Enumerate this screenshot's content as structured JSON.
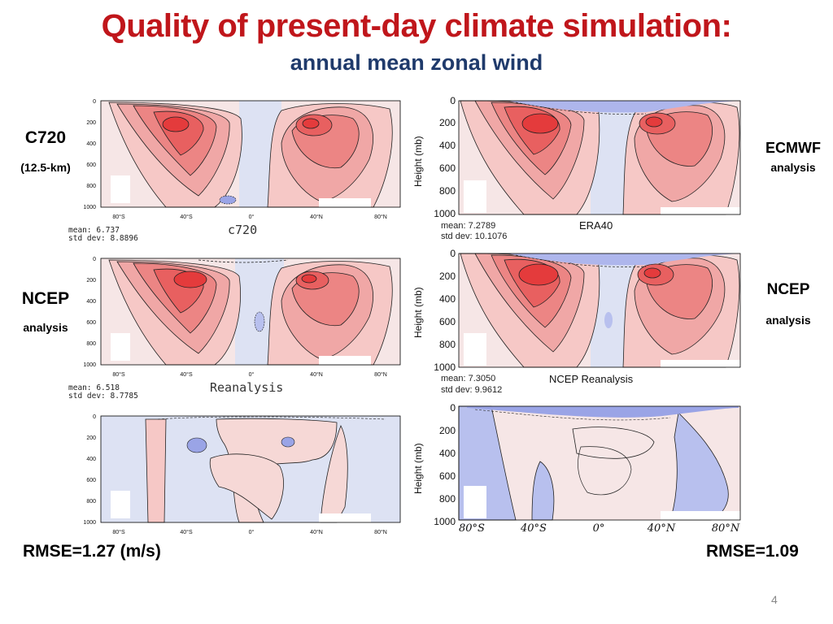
{
  "title": "Quality of present-day climate simulation:",
  "subtitle": "annual mean zonal wind",
  "left_labels": {
    "top_model": "C720",
    "top_model_note": "(12.5-km)",
    "mid_name": "NCEP",
    "mid_note": "analysis"
  },
  "right_labels": {
    "top_name": "ECMWF",
    "top_note": "analysis",
    "mid_name": "NCEP",
    "mid_note": "analysis"
  },
  "left_panels": {
    "y_ticks": [
      "0",
      "200",
      "400",
      "600",
      "800",
      "1000"
    ],
    "x_ticks": [
      "80°S",
      "40°S",
      "0°",
      "40°N",
      "80°N"
    ],
    "panel1_caption": "c720",
    "panel1_mean": "mean: 6.737",
    "panel1_std": "std dev: 8.8896",
    "panel2_caption": "Reanalysis",
    "panel2_mean": "mean: 6.518",
    "panel2_std": "std dev: 8.7785"
  },
  "right_panels": {
    "y_label": "Height (mb)",
    "y_ticks": [
      "0",
      "200",
      "400",
      "600",
      "800",
      "1000"
    ],
    "x_ticks": [
      "80°S",
      "40°S",
      "0°",
      "40°N",
      "80°N"
    ],
    "panel1_caption": "ERA40",
    "panel1_mean": "mean:  7.2789",
    "panel1_std": "std dev: 10.1076",
    "panel2_caption": "NCEP Reanalysis",
    "panel2_mean": "mean:  7.3050",
    "panel2_std": "std dev:  9.9612"
  },
  "rmse_left": "RMSE=1.27 (m/s)",
  "rmse_right": "RMSE=1.09",
  "page_number": "4",
  "colors": {
    "title": "#c0161b",
    "subtitle": "#1f3a6b",
    "westerly_strong": "#e8373a",
    "westerly_mid": "#f08a8a",
    "westerly_light": "#f8d6d3",
    "easterly_light": "#dce0f2",
    "easterly_mid": "#9aa4e6"
  }
}
